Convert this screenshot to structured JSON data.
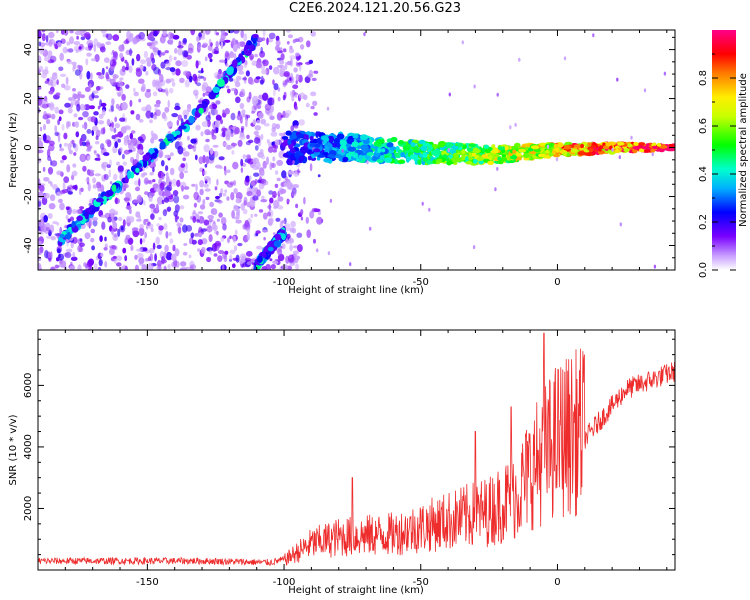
{
  "title": "C2E6.2024.121.20.56.G23",
  "colors": {
    "snr_line": "#ee2c2c",
    "frame": "#000000"
  },
  "chart_data": [
    {
      "type": "heatmap",
      "title": "C2E6.2024.121.20.56.G23",
      "xlabel": "Height of straight line (km)",
      "ylabel": "Frequency (Hz)",
      "xlim": [
        -190,
        43
      ],
      "ylim": [
        -50,
        48
      ],
      "x_ticks": [
        -150,
        -100,
        -50,
        0
      ],
      "y_ticks": [
        -40,
        -20,
        0,
        20,
        40
      ],
      "colorbar": {
        "label": "Normalized spectral amplitude",
        "range": [
          0.0,
          1.0
        ],
        "ticks": [
          0.0,
          0.2,
          0.4,
          0.6,
          0.8
        ],
        "colormap": "rainbow (violet→blue→cyan→green→yellow→red→magenta)"
      },
      "features": [
        {
          "name": "diagonal_trace_1",
          "x": [
            -182,
            -165,
            -150,
            -135,
            -122,
            -110
          ],
          "y": [
            -38,
            -20,
            -5,
            10,
            27,
            45
          ]
        },
        {
          "name": "diagonal_trace_2",
          "x": [
            -110,
            -104,
            -100
          ],
          "y": [
            -48,
            -40,
            -35
          ]
        },
        {
          "name": "horizontal_band",
          "x": [
            -100,
            -75,
            -50,
            -25,
            0,
            25,
            43
          ],
          "y": [
            0,
            0,
            -2,
            -3,
            -1,
            0,
            0
          ]
        }
      ]
    },
    {
      "type": "line",
      "xlabel": "Height of straight line (km)",
      "ylabel": "SNR (10 * v/v)",
      "xlim": [
        -190,
        43
      ],
      "ylim": [
        0,
        7800
      ],
      "x_ticks": [
        -150,
        -100,
        -50,
        0
      ],
      "y_ticks": [
        2000,
        4000,
        6000
      ],
      "series_profile": {
        "x": [
          -190,
          -160,
          -130,
          -105,
          -100,
          -90,
          -80,
          -60,
          -40,
          -25,
          -15,
          -10,
          0,
          10,
          25,
          43
        ],
        "y": [
          250,
          250,
          250,
          200,
          300,
          800,
          1000,
          1100,
          1500,
          1800,
          2300,
          3000,
          4000,
          4300,
          5900,
          6500
        ]
      },
      "spikes": [
        {
          "x": -75,
          "y": 3000
        },
        {
          "x": -30,
          "y": 4500
        },
        {
          "x": -17,
          "y": 5300
        },
        {
          "x": -5,
          "y": 7700
        }
      ]
    }
  ]
}
